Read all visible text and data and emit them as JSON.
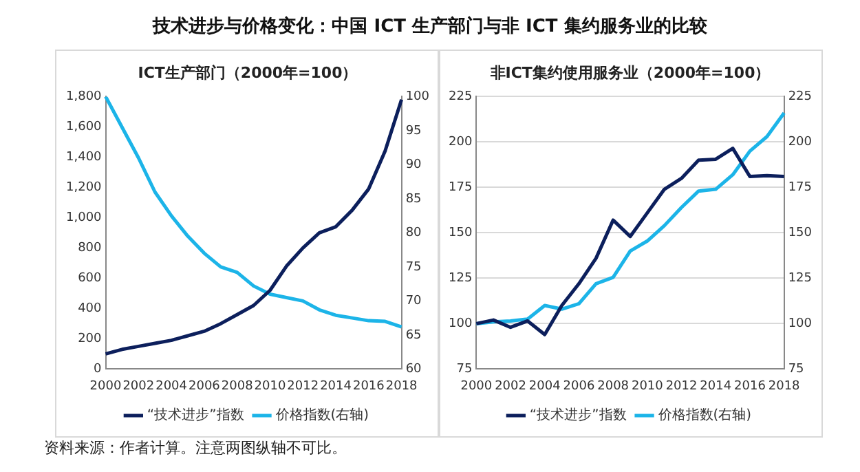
{
  "chart_data": [
    {
      "type": "line",
      "title": "ICT生产部门（2000年=100）",
      "annotations": [
        "技术进步与价格变化：中国 ICT 生产部门与非 ICT 集约服务业的比较",
        "资料来源：作者计算。注意两图纵轴不可比。"
      ],
      "categories": [
        "2000",
        null,
        "2002",
        null,
        "2004",
        null,
        "2006",
        null,
        "2008",
        null,
        "2010",
        null,
        "2012",
        null,
        "2014",
        null,
        "2016",
        null,
        "2018"
      ],
      "series": [
        {
          "name": "“技术进步”指数",
          "color": "#0c1f5c",
          "values": [
            100,
            130,
            150,
            170,
            190,
            220,
            250,
            300,
            360,
            420,
            520,
            680,
            800,
            900,
            940,
            1050,
            1190,
            1440,
            1780
          ]
        },
        {
          "name": "价格指数(右轴)",
          "color": "#1cb4e8",
          "axis": "y2",
          "values": [
            100,
            95.5,
            91,
            86,
            82.5,
            79.5,
            77,
            75,
            74.2,
            72.2,
            71,
            70.5,
            70,
            68.7,
            67.9,
            67.5,
            67.1,
            67,
            66.2
          ]
        }
      ],
      "ylim": [
        0,
        1800
      ],
      "yticks": [
        0,
        {
          "value": 200,
          "label": "200"
        },
        {
          "value": 400,
          "label": "400"
        },
        {
          "value": 600,
          "label": "600"
        },
        {
          "value": 800,
          "label": "800"
        },
        {
          "value": 1000,
          "label": "1,000"
        },
        {
          "value": 1200,
          "label": "1,200"
        },
        {
          "value": 1400,
          "label": "1,400"
        },
        {
          "value": 1600,
          "label": "1,600"
        },
        {
          "value": 1800,
          "label": "1,800"
        }
      ],
      "y2lim": [
        60,
        100
      ],
      "y2ticks": [
        60,
        65,
        70,
        75,
        80,
        85,
        90,
        95,
        100
      ],
      "grid": false,
      "legend": "bottom",
      "marker": "none",
      "line_style": "solid"
    },
    {
      "type": "line",
      "title": "非ICT集约使用服务业（2000年=100）",
      "categories": [
        "2000",
        null,
        "2002",
        null,
        "2004",
        null,
        "2006",
        null,
        "2008",
        null,
        "2010",
        null,
        "2012",
        null,
        "2014",
        null,
        "2016",
        null,
        "2018"
      ],
      "series": [
        {
          "name": "“技术进步”指数",
          "color": "#0c1f5c",
          "values": [
            100,
            102,
            98,
            101.5,
            94,
            110,
            122,
            136,
            157,
            148,
            161,
            174,
            180,
            190,
            190.5,
            196.5,
            181,
            181.5,
            181
          ]
        },
        {
          "name": "价格指数(右轴)",
          "color": "#1cb4e8",
          "axis": "y2",
          "values": [
            100,
            101,
            101.5,
            102.5,
            110,
            108,
            111,
            122,
            125.5,
            140,
            145.5,
            154,
            164,
            173,
            174,
            182,
            195,
            203,
            216
          ]
        }
      ],
      "ylim": [
        75,
        225
      ],
      "yticks": [
        75,
        100,
        125,
        150,
        175,
        200,
        225
      ],
      "y2lim": [
        75,
        225
      ],
      "y2ticks": [
        75,
        100,
        125,
        150,
        175,
        200,
        225
      ],
      "grid": "y",
      "legend": "bottom",
      "marker": "none",
      "line_style": "solid"
    }
  ]
}
